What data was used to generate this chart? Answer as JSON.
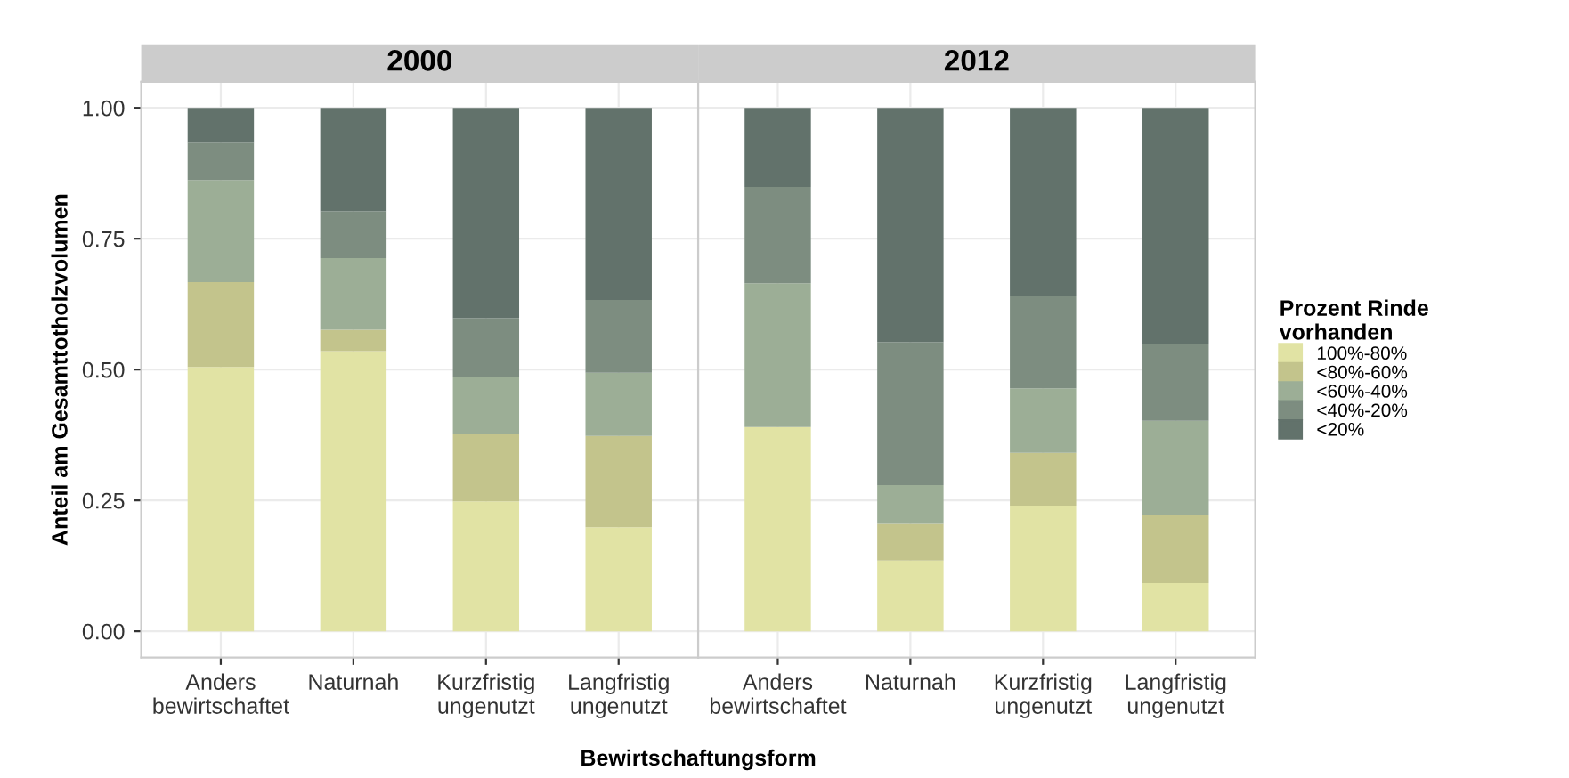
{
  "chart_data": [
    {
      "type": "bar",
      "title": "2000",
      "stacked": true,
      "ylabel": "Anteil am Gesamttotholzvolumen",
      "xlabel": "Bewirtschaftungsform",
      "categories": [
        "Anders\nbewirtschaftet",
        "Naturnah",
        "Kurzfristig\nungenutzt",
        "Langfristig\nungenutzt"
      ],
      "ylim": [
        -0.05,
        1.05
      ],
      "yticks": [
        {
          "value": 0,
          "label": "0.00"
        },
        {
          "value": 0.25,
          "label": "0.25"
        },
        {
          "value": 0.5,
          "label": "0.50"
        },
        {
          "value": 0.75,
          "label": "0.75"
        },
        {
          "value": 1,
          "label": "1.00"
        }
      ],
      "grid": true,
      "series": [
        {
          "color": "#e1e3a4",
          "values": [
            0.505,
            0.535,
            0.248,
            0.199
          ]
        },
        {
          "color": "#c3c48c",
          "values": [
            0.162,
            0.041,
            0.128,
            0.174
          ]
        },
        {
          "color": "#9cae96",
          "values": [
            0.195,
            0.137,
            0.11,
            0.121
          ]
        },
        {
          "color": "#7d8d80",
          "values": [
            0.071,
            0.089,
            0.112,
            0.139
          ]
        },
        {
          "color": "#62726b",
          "values": [
            0.067,
            0.198,
            0.402,
            0.367
          ]
        }
      ]
    },
    {
      "type": "bar",
      "title": "2012",
      "stacked": true,
      "legend_title": "Prozent Rinde\nvorhanden",
      "categories": [
        "Anders\nbewirtschaftet",
        "Naturnah",
        "Kurzfristig\nungenutzt",
        "Langfristig\nungenutzt"
      ],
      "ylim": [
        -0.05,
        1.05
      ],
      "yticks": [
        {
          "value": 0,
          "label": null
        },
        {
          "value": 0.25,
          "label": null
        },
        {
          "value": 0.5,
          "label": null
        },
        {
          "value": 0.75,
          "label": null
        },
        {
          "value": 1,
          "label": null
        }
      ],
      "grid": true,
      "legend": "right",
      "tick_labels": "x",
      "series": [
        {
          "name": "100%-80%",
          "color": "#e1e3a4",
          "values": [
            0.39,
            0.135,
            0.24,
            0.092
          ]
        },
        {
          "name": "<80%-60%",
          "color": "#c3c48c",
          "values": [
            0,
            0.07,
            0.101,
            0.131
          ]
        },
        {
          "name": "<60%-40%",
          "color": "#9cae96",
          "values": [
            0.275,
            0.074,
            0.123,
            0.179
          ]
        },
        {
          "name": "<40%-20%",
          "color": "#7d8d80",
          "values": [
            0.184,
            0.273,
            0.177,
            0.147
          ]
        },
        {
          "name": "<20%",
          "color": "#62726b",
          "values": [
            0.151,
            0.448,
            0.359,
            0.451
          ]
        }
      ]
    }
  ]
}
